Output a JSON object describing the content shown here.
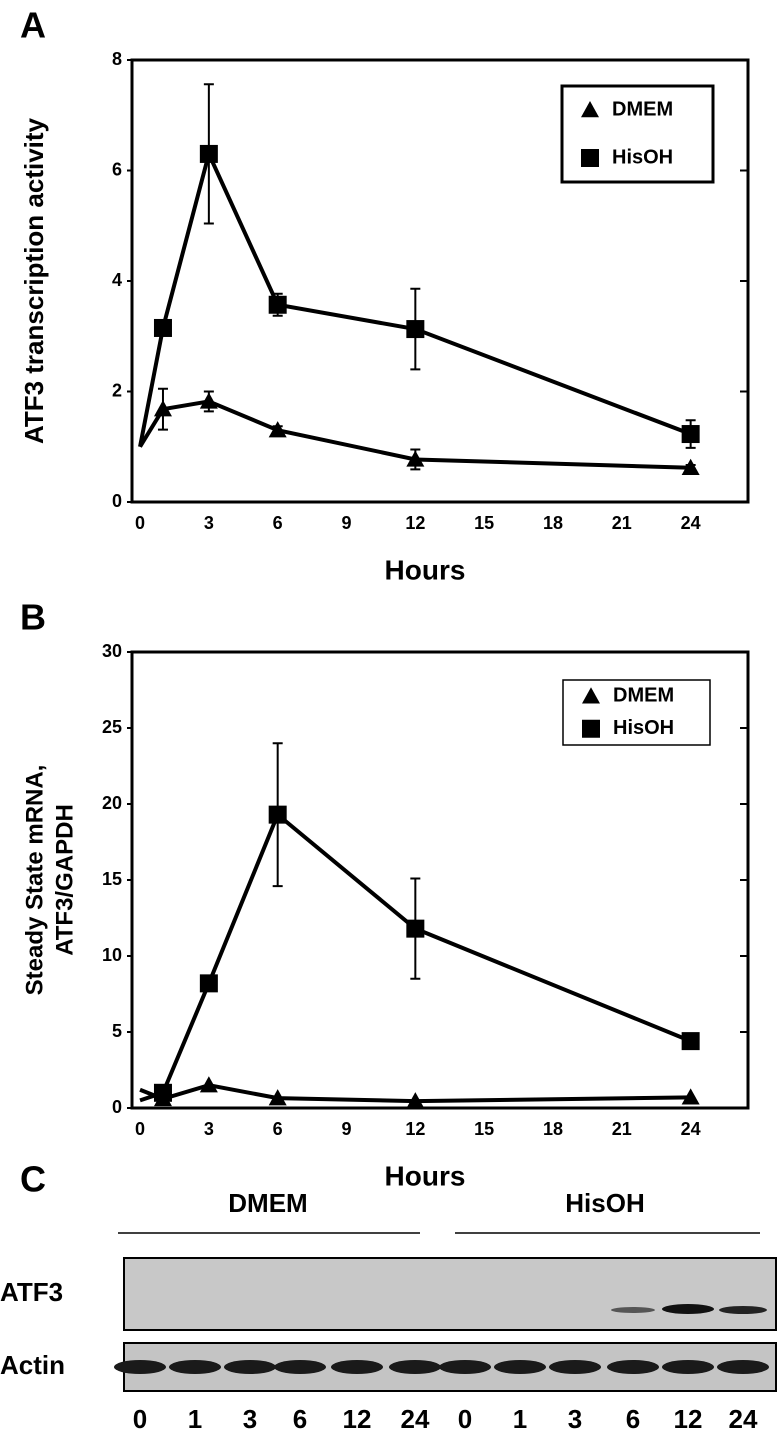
{
  "chart_data": [
    {
      "type": "line",
      "panel_label": "A",
      "xlabel": "Hours",
      "ylabel": "ATF3  transcription  activity",
      "x": [
        0,
        1,
        3,
        6,
        12,
        24
      ],
      "series": [
        {
          "name": "DMEM",
          "color": "#000000",
          "marker": "triangle",
          "values": [
            1.0,
            1.68,
            1.82,
            1.3,
            0.77,
            0.62
          ],
          "errors": [
            null,
            0.37,
            0.18,
            0.07,
            0.18,
            0.05
          ]
        },
        {
          "name": "HisOH",
          "color": "#000000",
          "marker": "square",
          "values": [
            1.0,
            3.15,
            6.3,
            3.57,
            3.13,
            1.23
          ],
          "errors": [
            null,
            0.1,
            1.26,
            0.2,
            0.73,
            0.25
          ]
        }
      ],
      "xlim": [
        -0.35,
        26.5
      ],
      "xticks": [
        0,
        3,
        6,
        9,
        12,
        15,
        18,
        21,
        24
      ],
      "ylim": [
        0,
        8
      ],
      "yticks": [
        0,
        2,
        4,
        6,
        8
      ],
      "legend": "upper right"
    },
    {
      "type": "line",
      "panel_label": "B",
      "xlabel": "Hours",
      "ylabel": [
        "Steady State mRNA,",
        "ATF3/GAPDH"
      ],
      "x": [
        0,
        1,
        3,
        6,
        12,
        24
      ],
      "series": [
        {
          "name": "DMEM",
          "color": "#000000",
          "marker": "triangle",
          "values": [
            1.2,
            0.6,
            1.5,
            0.65,
            0.45,
            0.7
          ],
          "errors": [
            null,
            null,
            null,
            null,
            null,
            null
          ]
        },
        {
          "name": "HisOH",
          "color": "#000000",
          "marker": "square",
          "values": [
            0.5,
            1.0,
            8.2,
            19.3,
            11.8,
            4.4
          ],
          "errors": [
            null,
            null,
            null,
            4.7,
            3.3,
            null
          ]
        }
      ],
      "xlim": [
        -0.35,
        26.5
      ],
      "xticks": [
        0,
        3,
        6,
        9,
        12,
        15,
        18,
        21,
        24
      ],
      "ylim": [
        0,
        30
      ],
      "yticks": [
        0,
        5,
        10,
        15,
        20,
        25,
        30
      ],
      "legend": "upper right"
    }
  ],
  "blot": {
    "panel_label": "C",
    "groups": [
      "DMEM",
      "HisOH"
    ],
    "rows": [
      "ATF3",
      "Actin"
    ],
    "lanes": [
      "0",
      "1",
      "3",
      "6",
      "12",
      "24",
      "0",
      "1",
      "3",
      "6",
      "12",
      "24"
    ]
  }
}
